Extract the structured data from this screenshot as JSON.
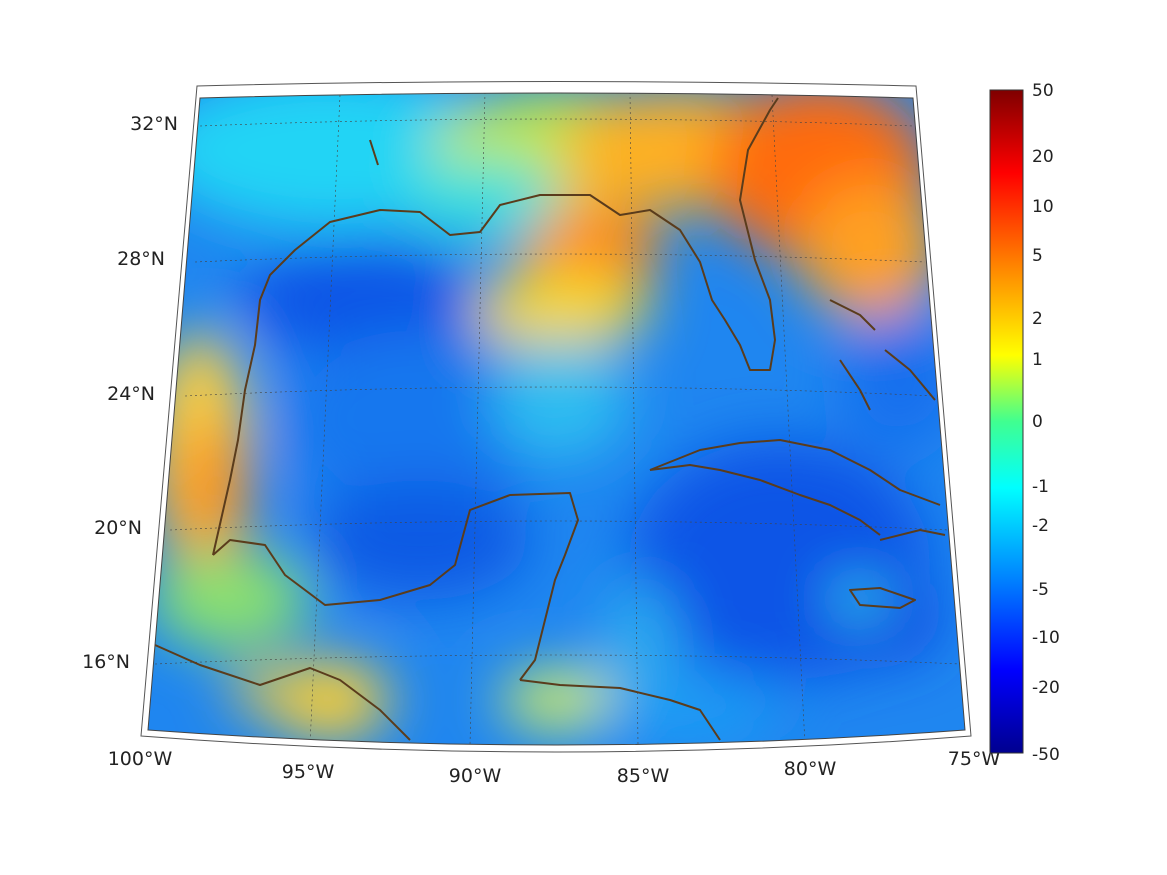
{
  "map": {
    "projection": "conic",
    "lon_range": [
      -100,
      -75
    ],
    "lat_range": [
      14,
      33
    ],
    "lat_labels": [
      {
        "value": 32,
        "label": "32°N"
      },
      {
        "value": 28,
        "label": "28°N"
      },
      {
        "value": 24,
        "label": "24°N"
      },
      {
        "value": 20,
        "label": "20°N"
      },
      {
        "value": 16,
        "label": "16°N"
      }
    ],
    "lon_labels": [
      {
        "value": -100,
        "label": "100°W"
      },
      {
        "value": -95,
        "label": "95°W"
      },
      {
        "value": -90,
        "label": "90°W"
      },
      {
        "value": -85,
        "label": "85°W"
      },
      {
        "value": -80,
        "label": "80°W"
      },
      {
        "value": -75,
        "label": "75°W"
      }
    ],
    "grid": true,
    "coastline_color": "#5a3c1c",
    "colormap": "jet"
  },
  "colorbar": {
    "ticks": [
      "50",
      "20",
      "10",
      "5",
      "2",
      "1",
      "0",
      "-1",
      "-2",
      "-5",
      "-10",
      "-20",
      "-50"
    ],
    "stops": [
      "#7f0000",
      "#ff0000",
      "#ff7f00",
      "#ffff00",
      "#00ff80",
      "#00ffff",
      "#0080ff",
      "#0000ff",
      "#00008f"
    ]
  }
}
